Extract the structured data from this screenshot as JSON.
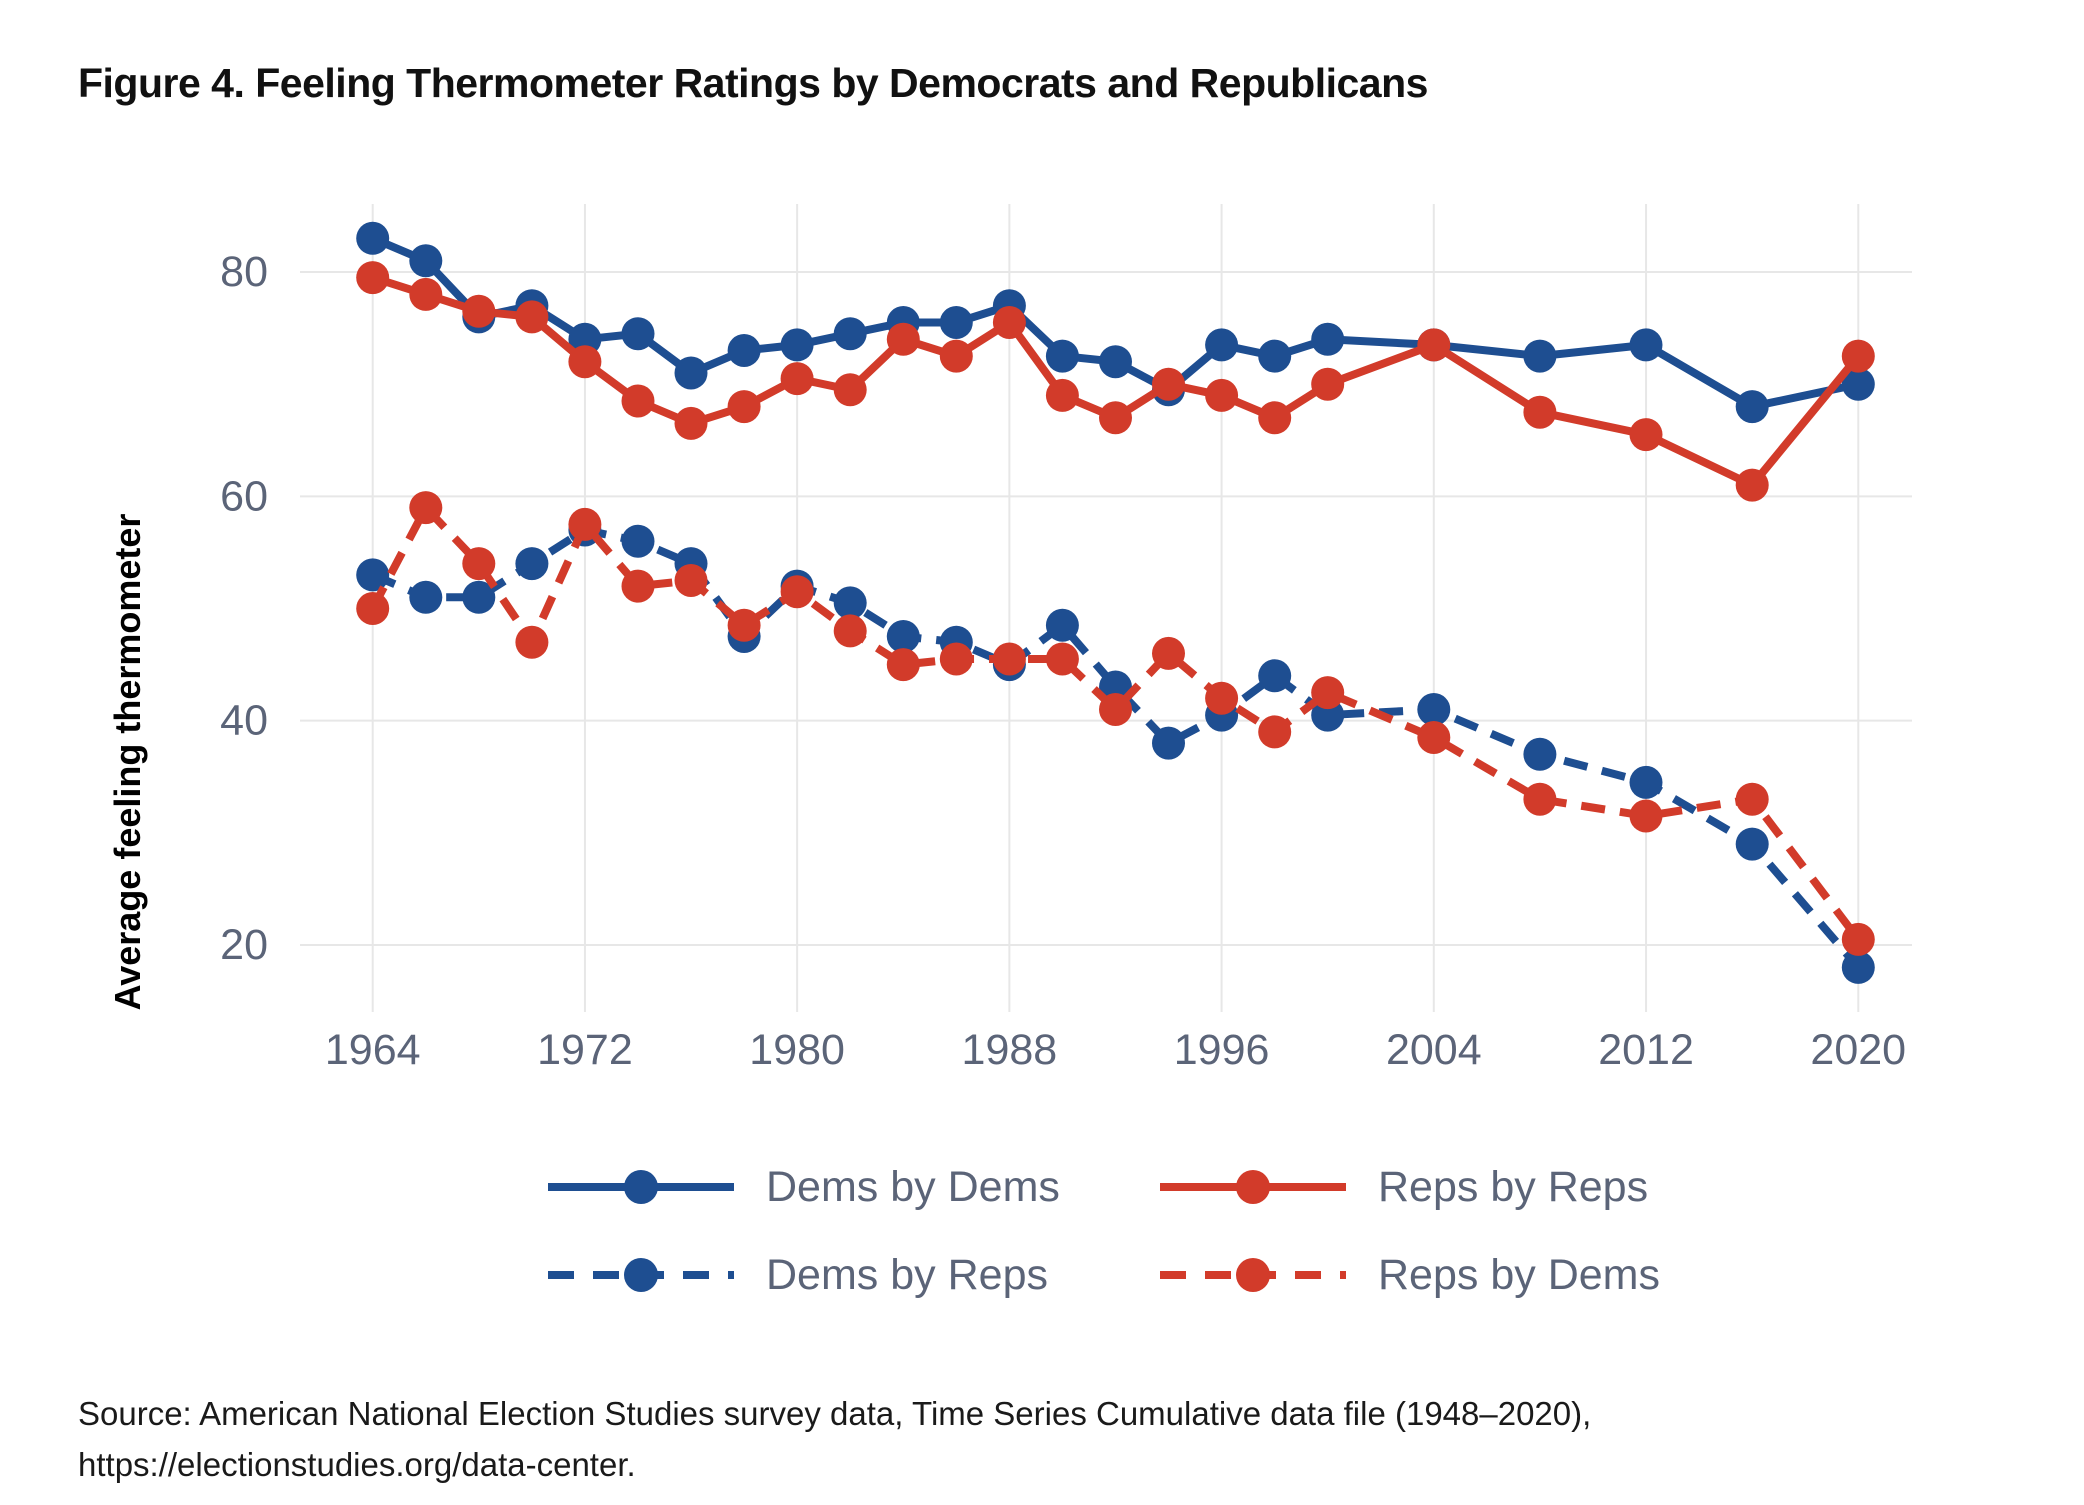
{
  "title": "Figure 4. Feeling Thermometer Ratings by Democrats and Republicans",
  "y_axis_title": "Average feeling thermometer",
  "source": {
    "line1": "Source: American National Election Studies survey data, Time Series Cumulative data file (1948–2020),",
    "line2": "https://electionstudies.org/data-center."
  },
  "colors": {
    "dem_blue": "#1e4e91",
    "rep_red": "#d23b2a",
    "text_slate": "#5b6478",
    "gridline": "#e7e7e7",
    "title_black": "#111111"
  },
  "legend": {
    "items": [
      {
        "label": "Dems by Dems",
        "color": "blue",
        "style": "solid"
      },
      {
        "label": "Reps by Reps",
        "color": "red",
        "style": "solid"
      },
      {
        "label": "Dems by Reps",
        "color": "blue",
        "style": "dashed"
      },
      {
        "label": "Reps by Dems",
        "color": "red",
        "style": "dashed"
      }
    ]
  },
  "chart_data": {
    "type": "line",
    "title": "Figure 4. Feeling Thermometer Ratings by Democrats and Republicans",
    "xlabel": "",
    "ylabel": "Average feeling thermometer",
    "x_ticks": [
      1964,
      1972,
      1980,
      1988,
      1996,
      2004,
      2012,
      2020
    ],
    "y_ticks": [
      20,
      40,
      60,
      80
    ],
    "ylim": [
      14,
      86
    ],
    "grid": true,
    "legend_position": "bottom",
    "x": [
      1964,
      1966,
      1968,
      1970,
      1972,
      1974,
      1976,
      1978,
      1980,
      1982,
      1984,
      1986,
      1988,
      1990,
      1992,
      1994,
      1996,
      1998,
      2000,
      2004,
      2008,
      2012,
      2016,
      2020
    ],
    "series": [
      {
        "name": "Dems by Dems",
        "color_key": "dem_blue",
        "style": "solid",
        "values": [
          83,
          81,
          76,
          77,
          74,
          74.5,
          71,
          73,
          73.5,
          74.5,
          75.5,
          75.5,
          77,
          72.5,
          72,
          69.5,
          73.5,
          72.5,
          74,
          73.5,
          72.5,
          73.5,
          68,
          70
        ]
      },
      {
        "name": "Reps by Reps",
        "color_key": "rep_red",
        "style": "solid",
        "values": [
          79.5,
          78,
          76.5,
          76,
          72,
          68.5,
          66.5,
          68,
          70.5,
          69.5,
          74,
          72.5,
          75.5,
          69,
          67,
          70,
          69,
          67,
          70,
          73.5,
          67.5,
          65.5,
          61,
          72.5
        ]
      },
      {
        "name": "Dems by Reps",
        "color_key": "dem_blue",
        "style": "dashed",
        "values": [
          53,
          51,
          51,
          54,
          57,
          56,
          54,
          47.5,
          52,
          50.5,
          47.5,
          47,
          45,
          48.5,
          43,
          38,
          40.5,
          44,
          40.5,
          41,
          37,
          34.5,
          29,
          18
        ]
      },
      {
        "name": "Reps by Dems",
        "color_key": "rep_red",
        "style": "dashed",
        "values": [
          50,
          59,
          54,
          47,
          57.5,
          52,
          52.5,
          48.5,
          51.5,
          48,
          45,
          45.5,
          45.5,
          45.5,
          41,
          46,
          42,
          39,
          42.5,
          38.5,
          33,
          31.5,
          33,
          20.5
        ]
      }
    ]
  }
}
